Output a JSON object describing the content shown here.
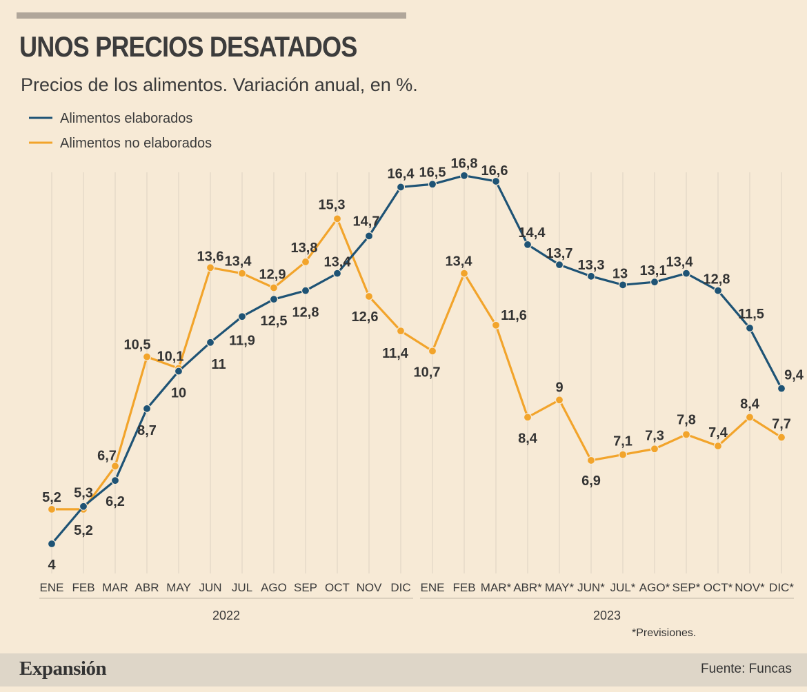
{
  "title": "UNOS PRECIOS DESATADOS",
  "subtitle": "Precios de los alimentos. Variación anual, en %.",
  "footnote": "*Previsiones.",
  "footer": {
    "brand": "Expansión",
    "source": "Fuente: Funcas"
  },
  "colors": {
    "background": "#f7ead6",
    "elaborados": "#1e5375",
    "no_elaborados": "#f2a42b",
    "footer": "#ded6c8"
  },
  "chart_data": {
    "type": "line",
    "title": "UNOS PRECIOS DESATADOS",
    "subtitle": "Precios de los alimentos. Variación anual, en %.",
    "categories": [
      "ENE",
      "FEB",
      "MAR",
      "ABR",
      "MAY",
      "JUN",
      "JUL",
      "AGO",
      "SEP",
      "OCT",
      "NOV",
      "DIC",
      "ENE",
      "FEB",
      "MAR*",
      "ABR*",
      "MAY*",
      "JUN*",
      "JUL*",
      "AGO*",
      "SEP*",
      "OCT*",
      "NOV*",
      "DIC*"
    ],
    "year_groups": [
      {
        "label": "2022",
        "from": 0,
        "to": 11
      },
      {
        "label": "2023",
        "from": 12,
        "to": 23
      }
    ],
    "series": [
      {
        "name": "Alimentos elaborados",
        "color": "#1e5375",
        "values": [
          4,
          5.3,
          6.2,
          8.7,
          10,
          11,
          11.9,
          12.5,
          12.8,
          13.4,
          14.7,
          16.4,
          16.5,
          16.8,
          16.6,
          14.4,
          13.7,
          13.3,
          13,
          13.1,
          13.4,
          12.8,
          11.5,
          9.4
        ],
        "labels": [
          "4",
          "5,3",
          "6,2",
          "8,7",
          "10",
          "11",
          "11,9",
          "12,5",
          "12,8",
          "13,4",
          "14,7",
          "16,4",
          "16,5",
          "16,8",
          "16,6",
          "14,4",
          "13,7",
          "13,3",
          "13",
          "13,1",
          "13,4",
          "12,8",
          "11,5",
          "9,4"
        ]
      },
      {
        "name": "Alimentos no elaborados",
        "color": "#f2a42b",
        "values": [
          5.2,
          5.2,
          6.7,
          10.5,
          10.1,
          13.6,
          13.4,
          12.9,
          13.8,
          15.3,
          12.6,
          11.4,
          10.7,
          13.4,
          11.6,
          8.4,
          9,
          6.9,
          7.1,
          7.3,
          7.8,
          7.4,
          8.4,
          7.7
        ],
        "labels": [
          "5,2",
          "5,2",
          "6,7",
          "10,5",
          "10,1",
          "13,6",
          "13,4",
          "12,9",
          "13,8",
          "15,3",
          "12,6",
          "11,4",
          "10,7",
          "13,4",
          "11,6",
          "8,4",
          "9",
          "6,9",
          "7,1",
          "7,3",
          "7,8",
          "7,4",
          "8,4",
          "7,7"
        ]
      }
    ],
    "legend": "top-left",
    "grid": "vertical"
  }
}
